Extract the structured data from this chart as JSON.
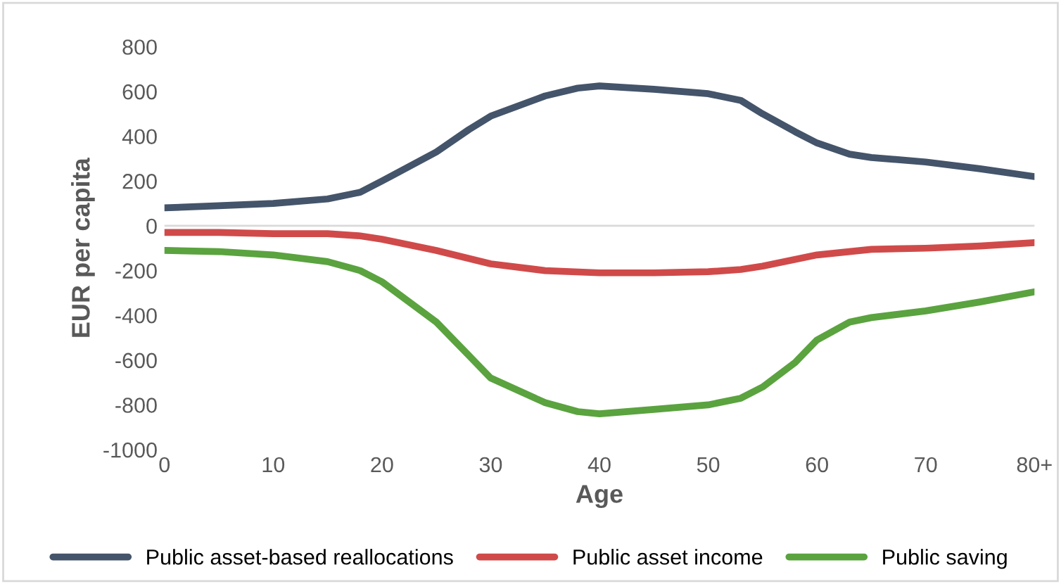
{
  "chart_data": {
    "type": "line",
    "xlabel": "Age",
    "ylabel": "EUR per capita",
    "xlim": [
      0,
      80
    ],
    "xticks": [
      0,
      10,
      20,
      30,
      40,
      50,
      60,
      70,
      {
        "value": 80,
        "label": "80+"
      }
    ],
    "ylim": [
      -1000,
      800
    ],
    "yticks": [
      -1000,
      -800,
      -600,
      -400,
      -200,
      0,
      200,
      400,
      600,
      800
    ],
    "grid": false,
    "legend": "bottom",
    "marker": "none",
    "line_style": "solid",
    "ref_lines": [
      {
        "axis": "y",
        "value": 0,
        "color": "#d9d9d9"
      }
    ],
    "series": [
      {
        "name": "Public asset-based reallocations",
        "color": "#44546a",
        "x": [
          0,
          5,
          10,
          15,
          18,
          20,
          25,
          28,
          30,
          35,
          38,
          40,
          45,
          50,
          53,
          55,
          58,
          60,
          63,
          65,
          70,
          75,
          80
        ],
        "values": [
          80,
          90,
          100,
          120,
          150,
          200,
          330,
          430,
          490,
          580,
          615,
          625,
          610,
          590,
          560,
          500,
          420,
          370,
          320,
          305,
          285,
          255,
          220
        ]
      },
      {
        "name": "Public asset income",
        "color": "#d04a4a",
        "x": [
          0,
          5,
          10,
          15,
          18,
          20,
          25,
          30,
          35,
          40,
          45,
          50,
          53,
          55,
          60,
          65,
          70,
          75,
          80
        ],
        "values": [
          -30,
          -30,
          -35,
          -35,
          -45,
          -60,
          -110,
          -170,
          -200,
          -210,
          -210,
          -205,
          -195,
          -180,
          -130,
          -105,
          -100,
          -90,
          -75
        ]
      },
      {
        "name": "Public saving",
        "color": "#5aa33f",
        "x": [
          0,
          5,
          10,
          15,
          18,
          20,
          25,
          28,
          30,
          35,
          38,
          40,
          45,
          50,
          53,
          55,
          58,
          60,
          63,
          65,
          70,
          75,
          80
        ],
        "values": [
          -110,
          -115,
          -130,
          -160,
          -200,
          -250,
          -430,
          -580,
          -680,
          -790,
          -830,
          -840,
          -820,
          -800,
          -770,
          -720,
          -610,
          -510,
          -430,
          -410,
          -380,
          -340,
          -295
        ]
      }
    ]
  }
}
